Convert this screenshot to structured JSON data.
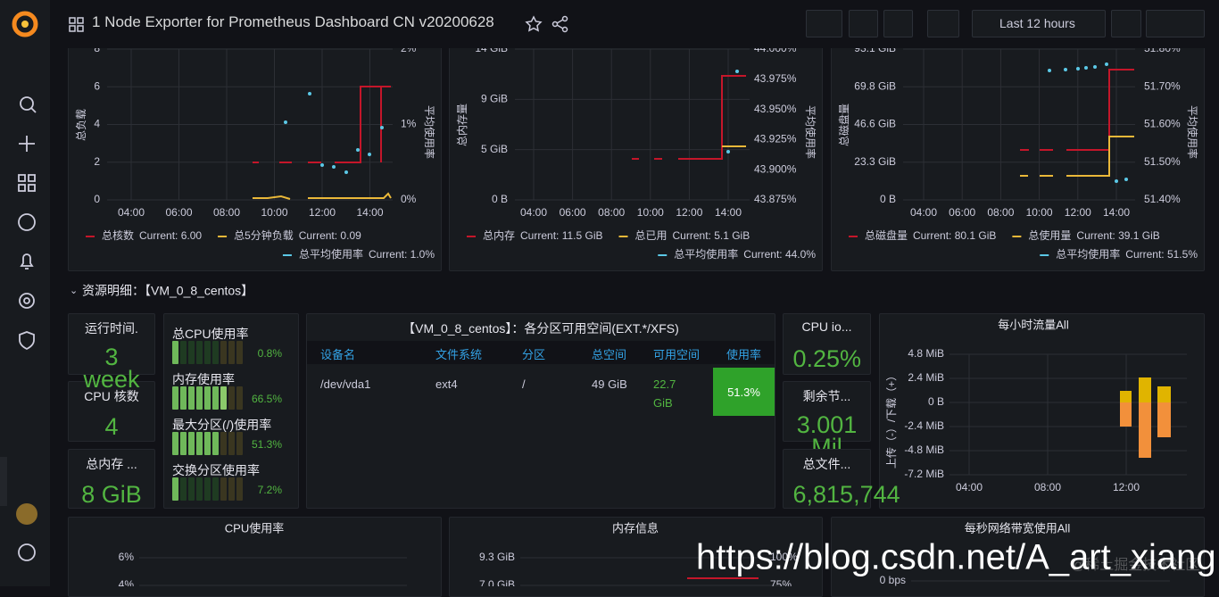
{
  "header": {
    "title": "1 Node Exporter for Prometheus Dashboard CN v20200628",
    "time_range": "Last 12 hours"
  },
  "top_panels": [
    {
      "ylabel": "总负载",
      "y2label": "平均使用率",
      "yticks": [
        "8",
        "6",
        "4",
        "2",
        "0"
      ],
      "y2ticks": [
        "2%",
        "1%",
        "0%"
      ],
      "xticks": [
        "04:00",
        "06:00",
        "08:00",
        "10:00",
        "12:00",
        "14:00"
      ],
      "legend": [
        {
          "name": "总核数",
          "current": "Current: 6.00",
          "color": "#c4162a"
        },
        {
          "name": "总5分钟负载",
          "current": "Current: 0.09",
          "color": "#eab839"
        },
        {
          "name": "总平均使用率",
          "current": "Current: 1.0%",
          "color": "#5bc8e6"
        }
      ]
    },
    {
      "ylabel": "总内存量",
      "y2label": "平均使用率",
      "yticks": [
        "14 GiB",
        "9 GiB",
        "5 GiB",
        "0 B"
      ],
      "y2ticks": [
        "44.000%",
        "43.975%",
        "43.950%",
        "43.925%",
        "43.900%",
        "43.875%"
      ],
      "xticks": [
        "04:00",
        "06:00",
        "08:00",
        "10:00",
        "12:00",
        "14:00"
      ],
      "legend": [
        {
          "name": "总内存",
          "current": "Current: 11.5 GiB",
          "color": "#c4162a"
        },
        {
          "name": "总已用",
          "current": "Current: 5.1 GiB",
          "color": "#eab839"
        },
        {
          "name": "总平均使用率",
          "current": "Current: 44.0%",
          "color": "#5bc8e6"
        }
      ]
    },
    {
      "ylabel": "总磁盘量",
      "y2label": "平均使用率",
      "yticks": [
        "93.1 GiB",
        "69.8 GiB",
        "46.6 GiB",
        "23.3 GiB",
        "0 B"
      ],
      "y2ticks": [
        "51.80%",
        "51.70%",
        "51.60%",
        "51.50%",
        "51.40%"
      ],
      "xticks": [
        "04:00",
        "06:00",
        "08:00",
        "10:00",
        "12:00",
        "14:00"
      ],
      "legend": [
        {
          "name": "总磁盘量",
          "current": "Current: 80.1 GiB",
          "color": "#c4162a"
        },
        {
          "name": "总使用量",
          "current": "Current: 39.1 GiB",
          "color": "#eab839"
        },
        {
          "name": "总平均使用率",
          "current": "Current: 51.5%",
          "color": "#5bc8e6"
        }
      ]
    }
  ],
  "section_title": "资源明细：【VM_0_8_centos】",
  "stats": [
    {
      "title": "运行时间.",
      "value": "3 week"
    },
    {
      "title": "CPU 核数",
      "value": "4"
    },
    {
      "title": "总内存 ...",
      "value": "8 GiB"
    },
    {
      "title": "CPU io...",
      "value": "0.25%"
    },
    {
      "title": "剩余节...",
      "value": "3.001 Mil"
    },
    {
      "title": "总文件...",
      "value": "6,815,744"
    }
  ],
  "gauges": [
    {
      "name": "总CPU使用率",
      "value": 0.8,
      "value_label": "0.8%"
    },
    {
      "name": "内存使用率",
      "value": 66.5,
      "value_label": "66.5%"
    },
    {
      "name": "最大分区(/)使用率",
      "value": 51.3,
      "value_label": "51.3%"
    },
    {
      "name": "交换分区使用率",
      "value": 7.2,
      "value_label": "7.2%"
    }
  ],
  "table": {
    "title": "【VM_0_8_centos】：各分区可用空间(EXT.*/XFS)",
    "columns": [
      "设备名",
      "文件系统",
      "分区",
      "总空间",
      "可用空间",
      "使用率"
    ],
    "rows": [
      [
        "/dev/vda1",
        "ext4",
        "/",
        "49 GiB",
        "22.7 GiB",
        "51.3%"
      ]
    ]
  },
  "traffic": {
    "title": "每小时流量All",
    "ylabel": "上传（-）/下载（+）",
    "yticks": [
      "4.8 MiB",
      "2.4 MiB",
      "0 B",
      "-2.4 MiB",
      "-4.8 MiB",
      "-7.2 MiB"
    ],
    "xticks": [
      "04:00",
      "08:00",
      "12:00"
    ]
  },
  "bottom_panels": [
    {
      "title": "CPU使用率",
      "yticks": [
        "6%",
        "4%"
      ]
    },
    {
      "title": "内存信息",
      "yticks": [
        "9.3 GiB",
        "7.0 GiB"
      ],
      "y2ticks": [
        "100%",
        "75%"
      ]
    },
    {
      "title": "每秒网络带宽使用All",
      "yticks": [
        "0 bps"
      ]
    }
  ],
  "watermark": "https://blog.csdn.net/A_art_xiang",
  "watermark2": "@稀土掘金技术社区"
}
